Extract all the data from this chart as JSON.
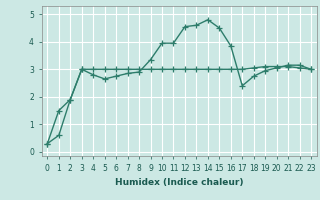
{
  "line1_x": [
    0,
    1,
    2,
    3,
    4,
    5,
    6,
    7,
    8,
    9,
    10,
    11,
    12,
    13,
    14,
    15,
    16,
    17,
    18,
    19,
    20,
    21,
    22,
    23
  ],
  "line1_y": [
    0.3,
    1.5,
    1.9,
    3.0,
    2.8,
    2.65,
    2.75,
    2.85,
    2.9,
    3.35,
    3.95,
    3.95,
    4.55,
    4.6,
    4.8,
    4.5,
    3.85,
    2.4,
    2.75,
    2.95,
    3.05,
    3.15,
    3.15,
    3.0
  ],
  "line2_x": [
    0,
    1,
    2,
    3,
    4,
    5,
    6,
    7,
    8,
    9,
    10,
    11,
    12,
    13,
    14,
    15,
    16,
    17,
    18,
    19,
    20,
    21,
    22,
    23
  ],
  "line2_y": [
    0.3,
    0.6,
    1.9,
    3.0,
    3.0,
    3.0,
    3.0,
    3.0,
    3.0,
    3.0,
    3.0,
    3.0,
    3.0,
    3.0,
    3.0,
    3.0,
    3.0,
    3.0,
    3.05,
    3.1,
    3.1,
    3.1,
    3.05,
    3.0
  ],
  "line_color": "#2d7d6b",
  "bg_color": "#cce8e4",
  "grid_color": "#ffffff",
  "xlabel": "Humidex (Indice chaleur)",
  "xlim": [
    -0.5,
    23.5
  ],
  "ylim": [
    -0.15,
    5.3
  ],
  "yticks": [
    0,
    1,
    2,
    3,
    4,
    5
  ],
  "xticks": [
    0,
    1,
    2,
    3,
    4,
    5,
    6,
    7,
    8,
    9,
    10,
    11,
    12,
    13,
    14,
    15,
    16,
    17,
    18,
    19,
    20,
    21,
    22,
    23
  ],
  "xtick_labels": [
    "0",
    "1",
    "2",
    "3",
    "4",
    "5",
    "6",
    "7",
    "8",
    "9",
    "10",
    "11",
    "12",
    "13",
    "14",
    "15",
    "16",
    "17",
    "18",
    "19",
    "20",
    "21",
    "22",
    "23"
  ],
  "marker": "+",
  "markersize": 4,
  "linewidth": 1.0
}
